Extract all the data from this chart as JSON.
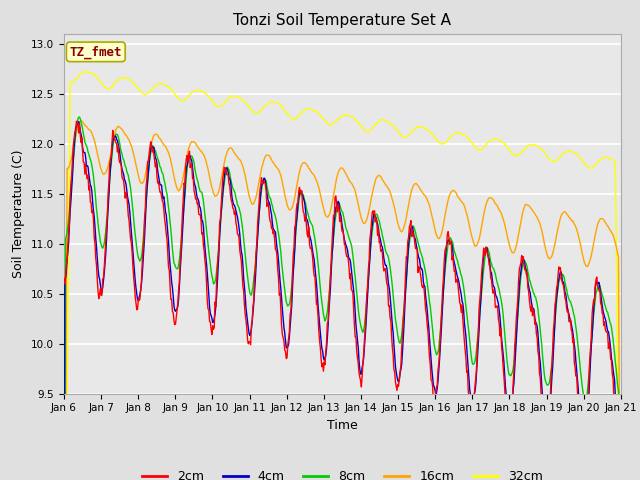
{
  "title": "Tonzi Soil Temperature Set A",
  "xlabel": "Time",
  "ylabel": "Soil Temperature (C)",
  "annotation": "TZ_fmet",
  "annotation_color": "#8B0000",
  "annotation_bg": "#FFFFCC",
  "ylim": [
    9.5,
    13.1
  ],
  "yticks": [
    9.5,
    10.0,
    10.5,
    11.0,
    11.5,
    12.0,
    12.5,
    13.0
  ],
  "xtick_labels": [
    "Jan 6",
    "Jan 7",
    "Jan 8",
    "Jan 9",
    "Jan 10",
    "Jan 11",
    "Jan 12",
    "Jan 13",
    "Jan 14",
    "Jan 15",
    "Jan 16",
    "Jan 17",
    "Jan 18",
    "Jan 19",
    "Jan 20",
    "Jan 21"
  ],
  "line_colors": {
    "2cm": "#FF0000",
    "4cm": "#0000CD",
    "8cm": "#00CC00",
    "16cm": "#FFA500",
    "32cm": "#FFFF00"
  },
  "legend_labels": [
    "2cm",
    "4cm",
    "8cm",
    "16cm",
    "32cm"
  ],
  "fig_facecolor": "#E0E0E0",
  "ax_facecolor": "#E8E8E8",
  "grid_color": "#FFFFFF"
}
